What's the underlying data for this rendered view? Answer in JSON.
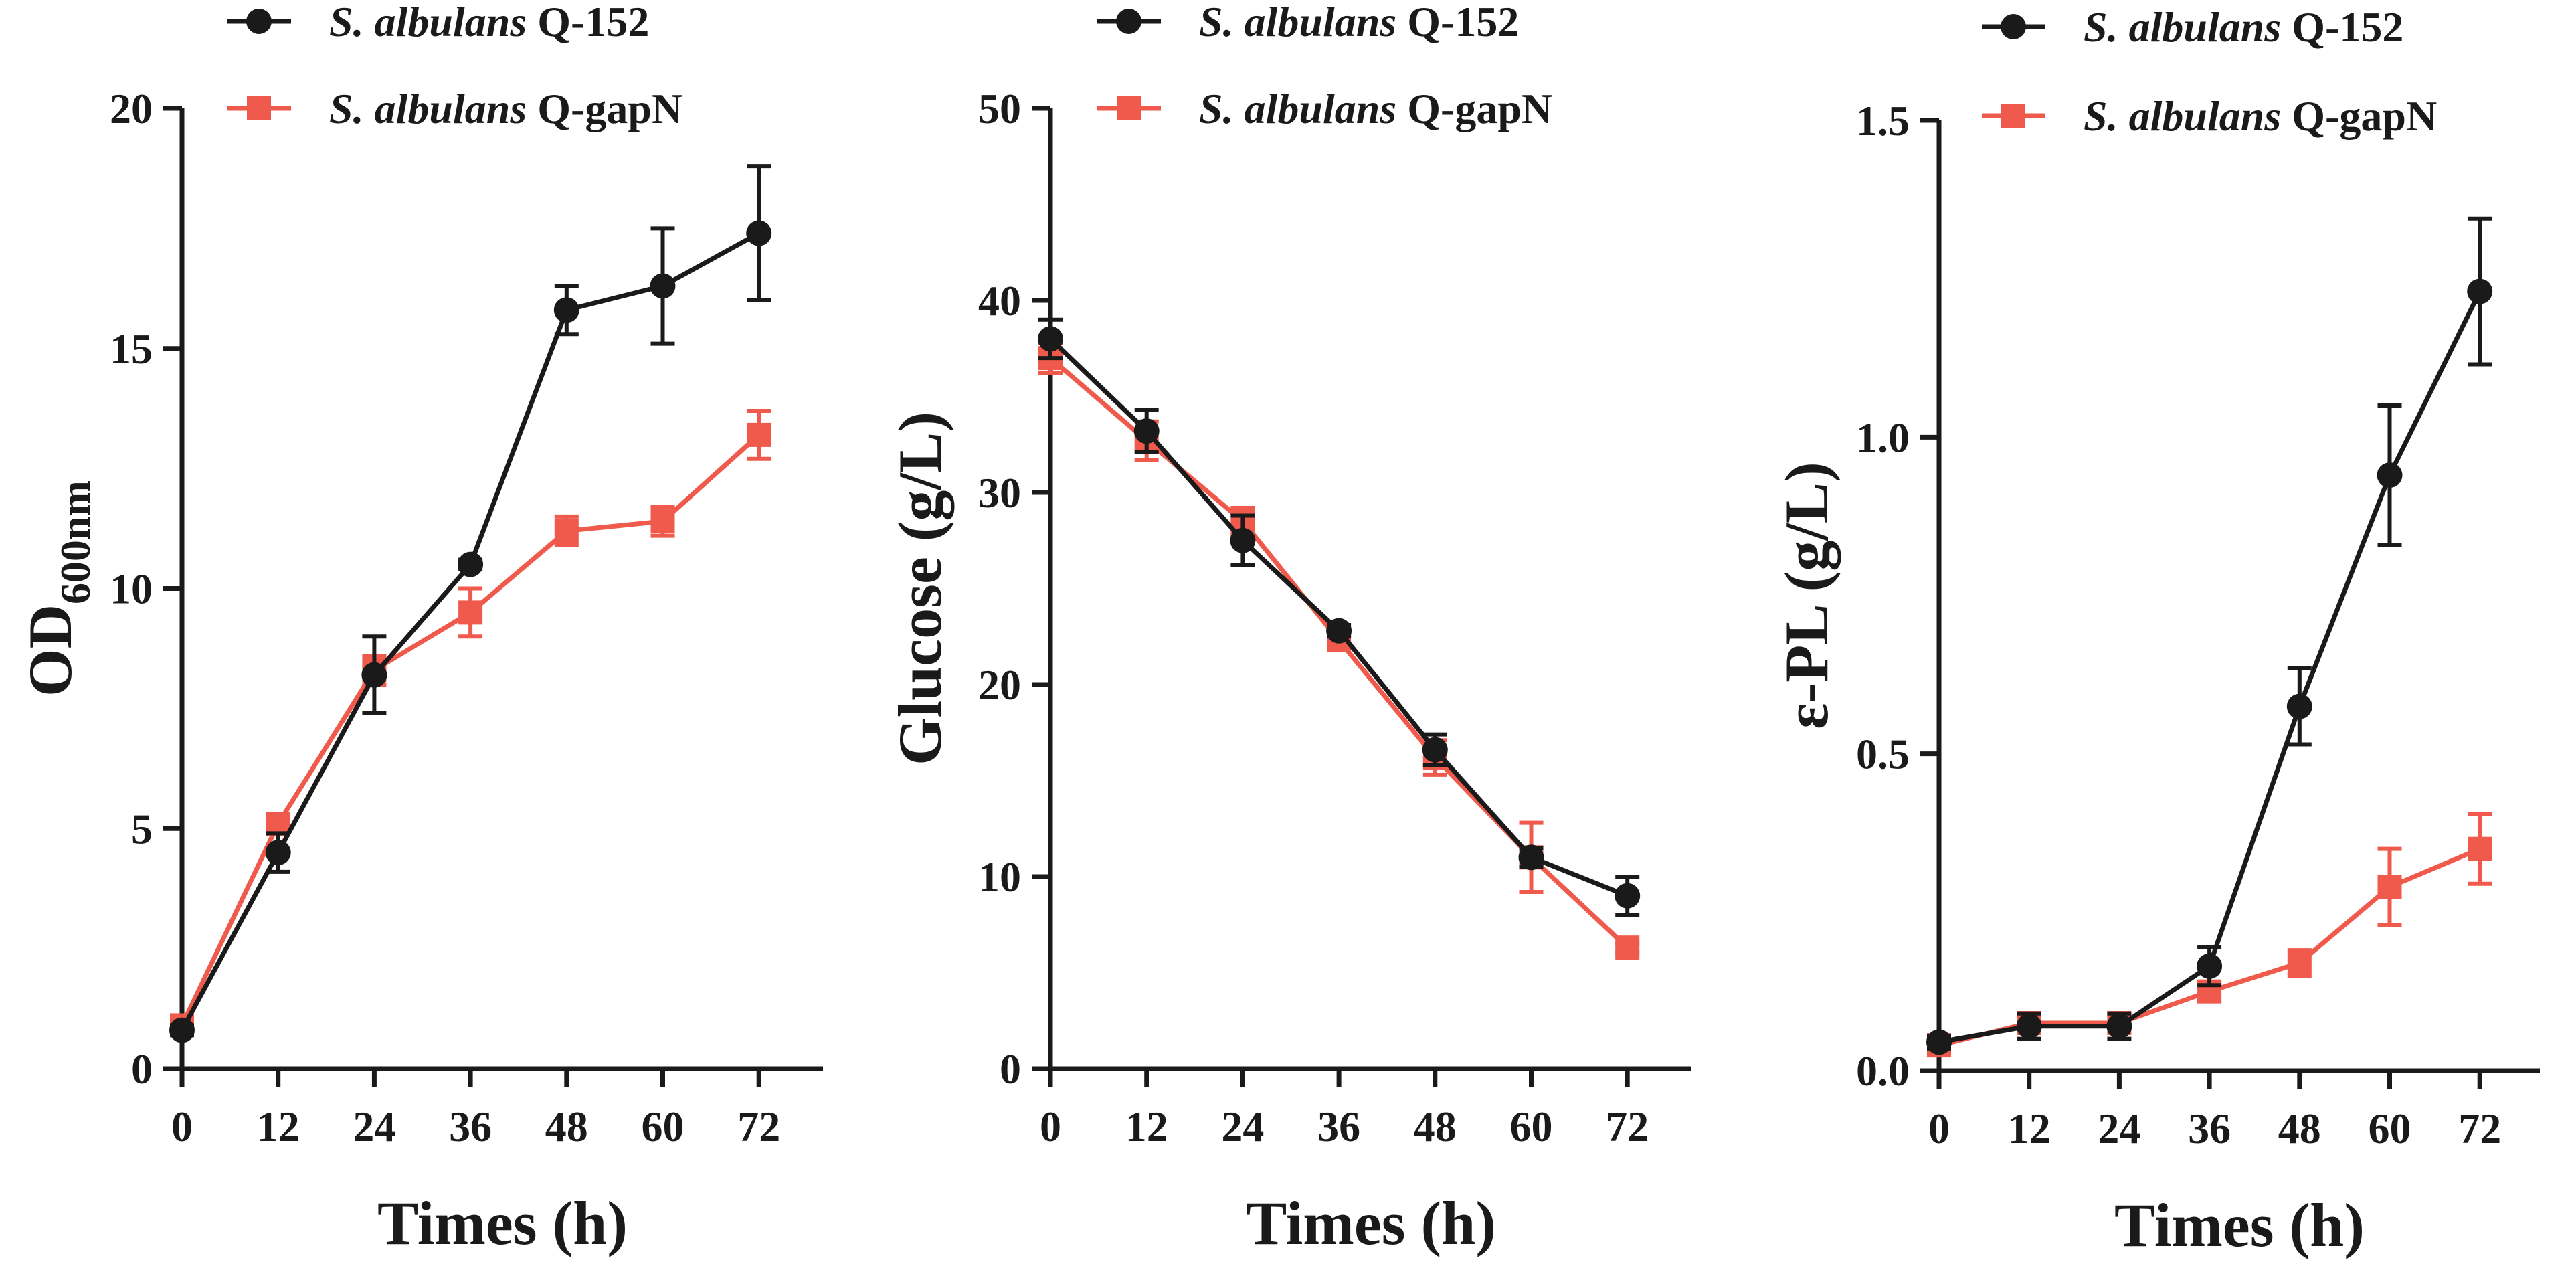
{
  "colors": {
    "q152": "#1a1a1a",
    "qgapN": "#ef5a4c",
    "axis": "#1a1a1a"
  },
  "legend": {
    "q152": {
      "species": "S. albulans",
      "strain": "Q-152"
    },
    "qgapN": {
      "species": "S. albulans",
      "strain": "Q-gapN"
    }
  },
  "chart_data": [
    {
      "type": "line",
      "ylabel_main": "OD",
      "ylabel_sub": "600nm",
      "xlabel": "Times (h)",
      "x": [
        0,
        12,
        24,
        36,
        48,
        60,
        72
      ],
      "xticks": [
        "0",
        "12",
        "24",
        "36",
        "48",
        "60",
        "72"
      ],
      "yticks": [
        "0",
        "5",
        "10",
        "15",
        "20"
      ],
      "xlim": [
        0,
        80
      ],
      "ylim": [
        0,
        20
      ],
      "yticks_values": [
        0,
        5,
        10,
        15,
        20
      ],
      "series": [
        {
          "key": "q152",
          "name": "S. albulans Q-152",
          "marker": "circle",
          "values": [
            0.8,
            4.5,
            8.2,
            10.5,
            15.8,
            16.3,
            17.4
          ],
          "errors": [
            0.1,
            0.4,
            0.8,
            0.1,
            0.5,
            1.2,
            1.4
          ]
        },
        {
          "key": "qgapN",
          "name": "S. albulans Q-gapN",
          "marker": "square",
          "values": [
            0.9,
            5.1,
            8.3,
            9.5,
            11.2,
            11.4,
            13.2
          ],
          "errors": [
            0.1,
            0.2,
            0.3,
            0.5,
            0.3,
            0.3,
            0.5
          ]
        }
      ]
    },
    {
      "type": "line",
      "ylabel_main": "Glucose (g/L)",
      "ylabel_sub": "",
      "xlabel": "Times (h)",
      "x": [
        0,
        12,
        24,
        36,
        48,
        60,
        72
      ],
      "xticks": [
        "0",
        "12",
        "24",
        "36",
        "48",
        "60",
        "72"
      ],
      "yticks": [
        "0",
        "10",
        "20",
        "30",
        "40",
        "50"
      ],
      "xlim": [
        0,
        80
      ],
      "ylim": [
        0,
        50
      ],
      "yticks_values": [
        0,
        10,
        20,
        30,
        40,
        50
      ],
      "series": [
        {
          "key": "q152",
          "name": "S. albulans Q-152",
          "marker": "circle",
          "values": [
            38.0,
            33.2,
            27.5,
            22.8,
            16.6,
            11.0,
            9.0
          ],
          "errors": [
            1.0,
            1.1,
            1.3,
            0.3,
            0.8,
            0.5,
            1.0
          ]
        },
        {
          "key": "qgapN",
          "name": "S. albulans Q-gapN",
          "marker": "square",
          "values": [
            37.0,
            32.7,
            28.5,
            22.3,
            16.2,
            11.0,
            6.3
          ],
          "errors": [
            0.8,
            1.0,
            0.7,
            0.4,
            0.9,
            1.8,
            0.2
          ]
        }
      ]
    },
    {
      "type": "line",
      "ylabel_main": "ε-PL (g/L)",
      "ylabel_sub": "",
      "xlabel": "Times (h)",
      "x": [
        0,
        12,
        24,
        36,
        48,
        60,
        72
      ],
      "xticks": [
        "0",
        "12",
        "24",
        "36",
        "48",
        "60",
        "72"
      ],
      "yticks": [
        "0.0",
        "0.5",
        "1.0",
        "1.5"
      ],
      "xlim": [
        0,
        80
      ],
      "ylim": [
        0,
        1.5
      ],
      "yticks_values": [
        0,
        0.5,
        1.0,
        1.5
      ],
      "series": [
        {
          "key": "q152",
          "name": "S. albulans Q-152",
          "marker": "circle",
          "values": [
            0.045,
            0.07,
            0.07,
            0.165,
            0.575,
            0.94,
            1.23
          ],
          "errors": [
            0.01,
            0.02,
            0.02,
            0.03,
            0.06,
            0.11,
            0.115
          ]
        },
        {
          "key": "qgapN",
          "name": "S. albulans Q-gapN",
          "marker": "square",
          "values": [
            0.04,
            0.075,
            0.075,
            0.125,
            0.17,
            0.29,
            0.35
          ],
          "errors": [
            0.01,
            0.01,
            0.01,
            0.015,
            0.02,
            0.06,
            0.055
          ]
        }
      ]
    }
  ]
}
